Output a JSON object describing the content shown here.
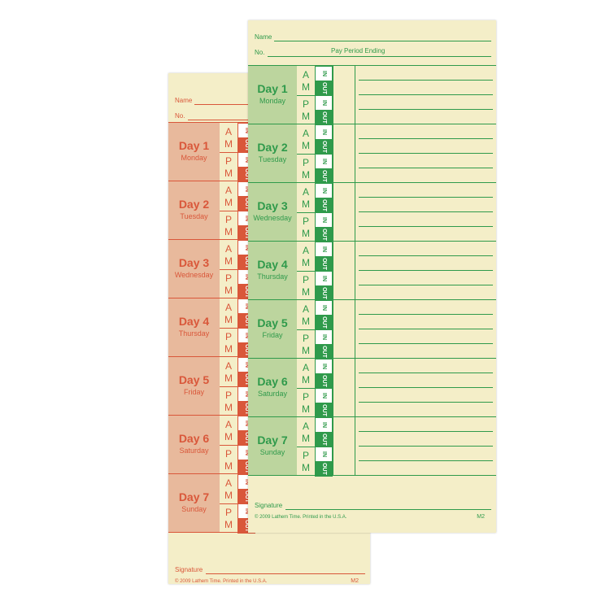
{
  "back_card": {
    "name_label": "Name",
    "no_label": "No.",
    "am": "AM",
    "pm": "PM",
    "in": "IN",
    "out": "OUT",
    "days": [
      {
        "day": "Day 1",
        "weekday": "Monday"
      },
      {
        "day": "Day 2",
        "weekday": "Tuesday"
      },
      {
        "day": "Day 3",
        "weekday": "Wednesday"
      },
      {
        "day": "Day 4",
        "weekday": "Thursday"
      },
      {
        "day": "Day 5",
        "weekday": "Friday"
      },
      {
        "day": "Day 6",
        "weekday": "Saturday"
      },
      {
        "day": "Day 7",
        "weekday": "Sunday"
      }
    ],
    "signature_label": "Signature",
    "copyright": "© 2009 Lathem Time.  Printed in the U.S.A.",
    "form_code": "M2"
  },
  "front_card": {
    "name_label": "Name",
    "no_label": "No.",
    "period_label": "Pay Period Ending",
    "am": "AM",
    "pm": "PM",
    "in": "IN",
    "out": "OUT",
    "days": [
      {
        "day": "Day 1",
        "weekday": "Monday"
      },
      {
        "day": "Day 2",
        "weekday": "Tuesday"
      },
      {
        "day": "Day 3",
        "weekday": "Wednesday"
      },
      {
        "day": "Day 4",
        "weekday": "Thursday"
      },
      {
        "day": "Day 5",
        "weekday": "Friday"
      },
      {
        "day": "Day 6",
        "weekday": "Saturday"
      },
      {
        "day": "Day 7",
        "weekday": "Sunday"
      }
    ],
    "signature_label": "Signature",
    "copyright": "© 2009 Lathem Time.  Printed in the U.S.A.",
    "form_code": "M2"
  }
}
